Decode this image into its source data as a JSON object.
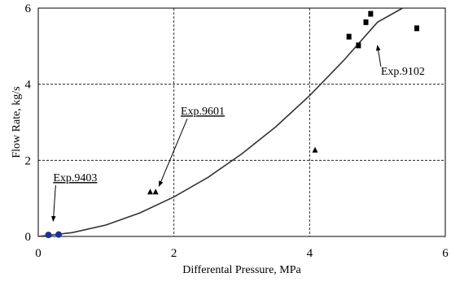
{
  "chart_data": {
    "type": "scatter",
    "xlabel": "Differental Pressure, MPa",
    "ylabel": "Flow Rate, kg/s",
    "xlim": [
      0,
      6
    ],
    "ylim": [
      0,
      6
    ],
    "xticks": [
      "0",
      "2",
      "4",
      "6"
    ],
    "yticks": [
      "0",
      "2",
      "4",
      "6"
    ],
    "grid": "dashed",
    "series": [
      {
        "marker": "circle",
        "color": "#1f2f8f",
        "points": [
          [
            0.15,
            0.04
          ],
          [
            0.3,
            0.05
          ]
        ]
      },
      {
        "marker": "triangle",
        "color": "#000000",
        "points": [
          [
            1.65,
            1.17
          ],
          [
            1.73,
            1.17
          ],
          [
            4.08,
            2.27
          ]
        ]
      },
      {
        "marker": "square",
        "color": "#000000",
        "points": [
          [
            4.58,
            5.25
          ],
          [
            4.72,
            5.02
          ],
          [
            4.83,
            5.63
          ],
          [
            4.9,
            5.85
          ],
          [
            5.58,
            5.47
          ]
        ]
      },
      {
        "type": "line",
        "color": "#333333",
        "x": [
          0,
          0.5,
          1.0,
          1.5,
          2.0,
          2.5,
          3.0,
          3.5,
          4.0,
          4.5,
          5.0,
          5.37
        ],
        "y": [
          0,
          0.1,
          0.3,
          0.62,
          1.04,
          1.55,
          2.17,
          2.88,
          3.7,
          4.62,
          5.63,
          6.0
        ]
      }
    ],
    "annotations": [
      {
        "text": "Exp.9403",
        "underline": true,
        "text_x": 0.22,
        "text_y": 1.45,
        "arrow_to": [
          0.22,
          0.4
        ]
      },
      {
        "text": "Exp.9601",
        "underline": true,
        "text_x": 2.1,
        "text_y": 3.2,
        "arrow_to": [
          1.78,
          1.32
        ]
      },
      {
        "text": "Exp.9102",
        "underline": false,
        "text_x": 5.05,
        "text_y": 4.25,
        "arrow_to": [
          5.0,
          5.02
        ]
      }
    ]
  }
}
